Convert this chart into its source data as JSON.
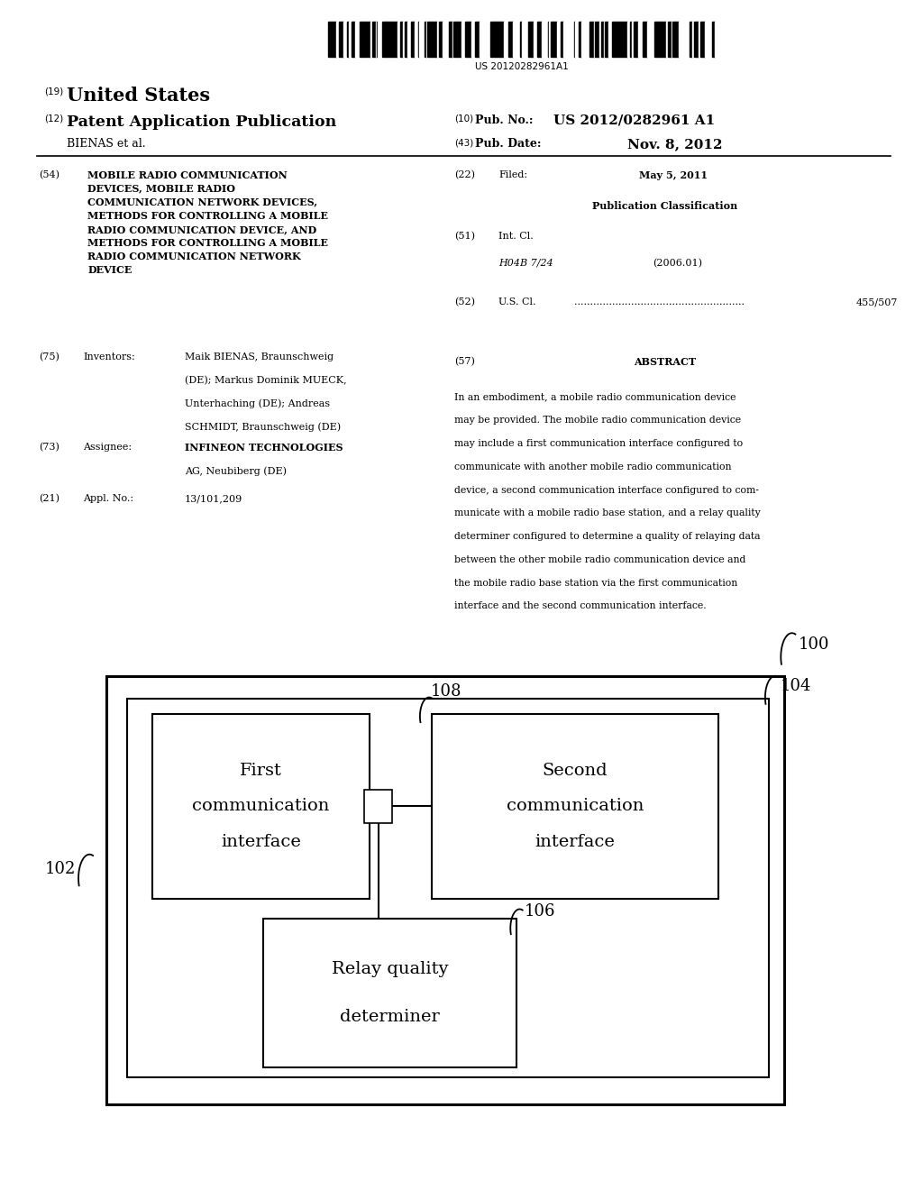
{
  "background_color": "#ffffff",
  "barcode_text": "US 20120282961A1",
  "header_line1_left_num": "(19)",
  "header_line1_left": "United States",
  "header_line2_left_num": "(12)",
  "header_line2_left": "Patent Application Publication",
  "header_line2_right_num": "(10)",
  "header_line2_right_label": "Pub. No.:",
  "header_line2_right_val": "US 2012/0282961 A1",
  "header_line3_left": "BIENAS et al.",
  "header_line3_right_num": "(43)",
  "header_line3_right_label": "Pub. Date:",
  "header_line3_right_val": "Nov. 8, 2012",
  "field54_num": "(54)",
  "field54_title": "MOBILE RADIO COMMUNICATION\nDEVICES, MOBILE RADIO\nCOMMUNICATION NETWORK DEVICES,\nMETHODS FOR CONTROLLING A MOBILE\nRADIO COMMUNICATION DEVICE, AND\nMETHODS FOR CONTROLLING A MOBILE\nRADIO COMMUNICATION NETWORK\nDEVICE",
  "field75_num": "(75)",
  "field75_label": "Inventors:",
  "field75_inv1": "Maik BIENAS, Braunschweig",
  "field75_inv2": "(DE); Markus Dominik MUECK,",
  "field75_inv3": "Unterhaching (DE); Andreas",
  "field75_inv4": "SCHMIDT, Braunschweig (DE)",
  "field73_num": "(73)",
  "field73_label": "Assignee:",
  "field73_line1": "INFINEON TECHNOLOGIES",
  "field73_line2": "AG, Neubiberg (DE)",
  "field21_num": "(21)",
  "field21_label": "Appl. No.:",
  "field21_text": "13/101,209",
  "field22_num": "(22)",
  "field22_label": "Filed:",
  "field22_text": "May 5, 2011",
  "pub_class_header": "Publication Classification",
  "field51_num": "(51)",
  "field51_label": "Int. Cl.",
  "field51_class": "H04B 7/24",
  "field51_year": "(2006.01)",
  "field52_num": "(52)",
  "field52_label": "U.S. Cl.",
  "field52_dots": "......................................................",
  "field52_val": "455/507",
  "field57_num": "(57)",
  "field57_label": "ABSTRACT",
  "abstract_lines": [
    "In an embodiment, a mobile radio communication device",
    "may be provided. The mobile radio communication device",
    "may include a first communication interface configured to",
    "communicate with another mobile radio communication",
    "device, a second communication interface configured to com-",
    "municate with a mobile radio base station, and a relay quality",
    "determiner configured to determine a quality of relaying data",
    "between the other mobile radio communication device and",
    "the mobile radio base station via the first communication",
    "interface and the second communication interface."
  ],
  "label_100": "100",
  "label_102": "102",
  "label_104": "104",
  "label_106": "106",
  "label_108": "108"
}
